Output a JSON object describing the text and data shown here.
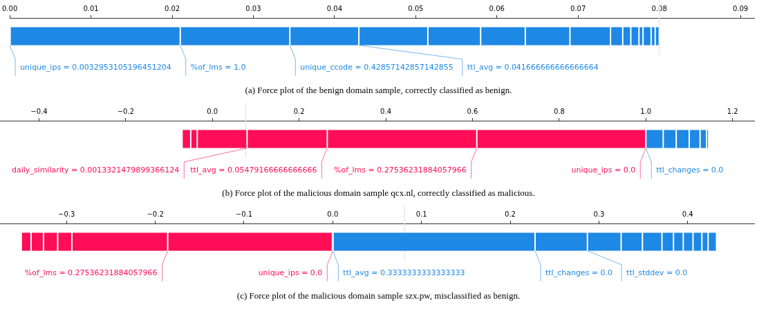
{
  "chart_data": [
    {
      "type": "bar",
      "orientation": "horizontal",
      "title": "(a) Force plot of the benign domain sample, correctly classified as benign.",
      "categories": [
        null
      ],
      "series": [
        {
          "name": "unique_ips = 0.0032953105196451204",
          "color": "#1e88e5",
          "values": [
            0.021
          ],
          "base": [
            0
          ]
        },
        {
          "name": "%of_lms = 1.0",
          "color": "#1e88e5",
          "values": [
            0.0135
          ],
          "base": [
            0.021
          ]
        },
        {
          "name": "unique_ccode = 0.42857142857142855",
          "color": "#1e88e5",
          "values": [
            0.0085
          ],
          "base": [
            0.0345
          ]
        },
        {
          "name": "ttl_avg = 0.041666666666666664",
          "color": "#1e88e5",
          "values": [
            0.0085
          ],
          "base": [
            0.043
          ]
        },
        {
          "color": "#1e88e5",
          "values": [
            0.0065
          ],
          "base": [
            0.0515
          ]
        },
        {
          "color": "#1e88e5",
          "values": [
            0.0055
          ],
          "base": [
            0.058
          ]
        },
        {
          "color": "#1e88e5",
          "values": [
            0.0055
          ],
          "base": [
            0.0635
          ]
        },
        {
          "color": "#1e88e5",
          "values": [
            0.005
          ],
          "base": [
            0.069
          ]
        },
        {
          "color": "#1e88e5",
          "values": [
            0.0015
          ],
          "base": [
            0.074
          ]
        },
        {
          "color": "#1e88e5",
          "values": [
            0.001
          ],
          "base": [
            0.0755
          ]
        },
        {
          "color": "#1e88e5",
          "values": [
            0.001
          ],
          "base": [
            0.0765
          ]
        },
        {
          "color": "#1e88e5",
          "values": [
            0.0005
          ],
          "base": [
            0.0775
          ]
        },
        {
          "color": "#1e88e5",
          "values": [
            0.001
          ],
          "base": [
            0.078
          ]
        },
        {
          "color": "#1e88e5",
          "values": [
            0.0005
          ],
          "base": [
            0.079
          ]
        },
        {
          "color": "#1e88e5",
          "values": [
            0.0005
          ],
          "base": [
            0.0795
          ]
        }
      ],
      "xlim": [
        0,
        0.0917
      ],
      "xticks": [
        {
          "value": 0,
          "label": "0.00"
        },
        0.01,
        0.02,
        0.03,
        0.04,
        0.05,
        0.06,
        0.07,
        0.08,
        0.09
      ],
      "ref_lines": [
        {
          "axis": "x",
          "value": 0.08,
          "color": "#e6e6e6"
        }
      ]
    },
    {
      "type": "bar",
      "orientation": "horizontal",
      "title": "(b) Force plot of the malicious domain sample qcx.nl, correctly classified as malicious.",
      "categories": [
        null
      ],
      "series": [
        {
          "color": "#ff0d57",
          "values": [
            0.02
          ],
          "base": [
            -0.07
          ]
        },
        {
          "color": "#ff0d57",
          "values": [
            0.015
          ],
          "base": [
            -0.05
          ]
        },
        {
          "name": "daily_similarity = 0.0013321479899366124",
          "color": "#ff0d57",
          "values": [
            0.115
          ],
          "base": [
            -0.035
          ]
        },
        {
          "name": "ttl_avg = 0.05479166666666666",
          "color": "#ff0d57",
          "values": [
            0.185
          ],
          "base": [
            0.08
          ]
        },
        {
          "name": "%of_lms = 0.27536231884057966",
          "color": "#ff0d57",
          "values": [
            0.345
          ],
          "base": [
            0.265
          ]
        },
        {
          "name": "unique_ips = 0.0",
          "color": "#ff0d57",
          "values": [
            0.39
          ],
          "base": [
            0.61
          ]
        },
        {
          "name": "ttl_changes = 0.0",
          "color": "#1e88e5",
          "values": [
            0.04
          ],
          "base": [
            1.0
          ]
        },
        {
          "color": "#1e88e5",
          "values": [
            0.03
          ],
          "base": [
            1.04
          ]
        },
        {
          "color": "#1e88e5",
          "values": [
            0.03
          ],
          "base": [
            1.07
          ]
        },
        {
          "color": "#1e88e5",
          "values": [
            0.025
          ],
          "base": [
            1.1
          ]
        },
        {
          "color": "#1e88e5",
          "values": [
            0.015
          ],
          "base": [
            1.125
          ]
        },
        {
          "color": "#1e88e5",
          "values": [
            0.005
          ],
          "base": [
            1.14
          ]
        }
      ],
      "xlim": [
        -0.49,
        1.25
      ],
      "xticks": [
        {
          "value": -0.4,
          "label": "−0.4"
        },
        {
          "value": -0.2,
          "label": "−0.2"
        },
        {
          "value": 0,
          "label": "0.0"
        },
        0.2,
        0.4,
        0.6,
        0.8,
        {
          "value": 1,
          "label": "1.0"
        },
        1.2
      ],
      "ref_lines": [
        {
          "axis": "x",
          "value": 0.077,
          "color": "#e6e6e6"
        }
      ]
    },
    {
      "type": "bar",
      "orientation": "horizontal",
      "title": "(c) Force plot of the malicious domain sample szx.pw, misclassified as benign.",
      "categories": [
        null
      ],
      "series": [
        {
          "color": "#ff0d57",
          "values": [
            0.011
          ],
          "base": [
            -0.351
          ]
        },
        {
          "color": "#ff0d57",
          "values": [
            0.014
          ],
          "base": [
            -0.34
          ]
        },
        {
          "color": "#ff0d57",
          "values": [
            0.016
          ],
          "base": [
            -0.326
          ]
        },
        {
          "color": "#ff0d57",
          "values": [
            0.016
          ],
          "base": [
            -0.31
          ]
        },
        {
          "name": "%of_lms = 0.27536231884057966",
          "color": "#ff0d57",
          "values": [
            0.108
          ],
          "base": [
            -0.294
          ]
        },
        {
          "name": "unique_ips = 0.0",
          "color": "#ff0d57",
          "values": [
            0.186
          ],
          "base": [
            -0.186
          ]
        },
        {
          "name": "ttl_avg = 0.3333333333333333",
          "color": "#1e88e5",
          "values": [
            0.228
          ],
          "base": [
            0
          ]
        },
        {
          "name": "ttl_changes = 0.0",
          "color": "#1e88e5",
          "values": [
            0.059
          ],
          "base": [
            0.228
          ]
        },
        {
          "name": "ttl_stddev = 0.0",
          "color": "#1e88e5",
          "values": [
            0.038
          ],
          "base": [
            0.287
          ]
        },
        {
          "color": "#1e88e5",
          "values": [
            0.024
          ],
          "base": [
            0.325
          ]
        },
        {
          "color": "#1e88e5",
          "values": [
            0.022
          ],
          "base": [
            0.349
          ]
        },
        {
          "color": "#1e88e5",
          "values": [
            0.013
          ],
          "base": [
            0.371
          ]
        },
        {
          "color": "#1e88e5",
          "values": [
            0.011
          ],
          "base": [
            0.384
          ]
        },
        {
          "color": "#1e88e5",
          "values": [
            0.011
          ],
          "base": [
            0.395
          ]
        },
        {
          "color": "#1e88e5",
          "values": [
            0.01
          ],
          "base": [
            0.406
          ]
        },
        {
          "color": "#1e88e5",
          "values": [
            0.007
          ],
          "base": [
            0.416
          ]
        },
        {
          "color": "#1e88e5",
          "values": [
            0.0095
          ],
          "base": [
            0.423
          ]
        }
      ],
      "xlim": [
        -0.375,
        0.475
      ],
      "xticks": [
        {
          "value": -0.3,
          "label": "−0.3"
        },
        {
          "value": -0.2,
          "label": "−0.2"
        },
        {
          "value": -0.1,
          "label": "−0.1"
        },
        {
          "value": 0,
          "label": "0.0"
        },
        0.1,
        0.2,
        0.3,
        0.4
      ],
      "ref_lines": [
        {
          "axis": "x",
          "value": 0.081,
          "color": "#e6e6e6"
        }
      ]
    }
  ]
}
